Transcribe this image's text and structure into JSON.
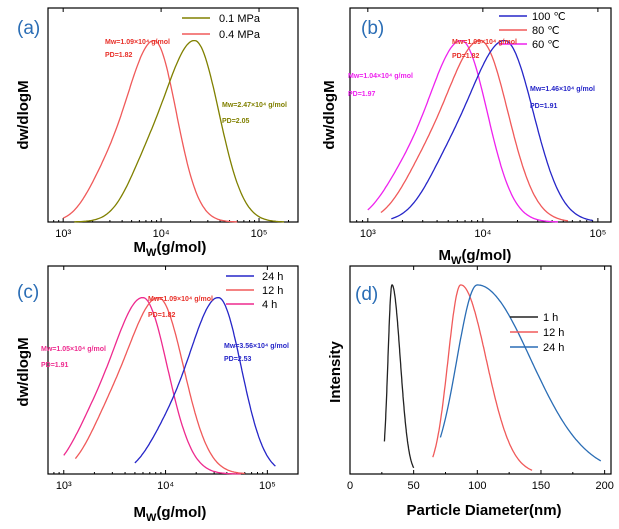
{
  "chart_data": [
    {
      "id": "a",
      "type": "line",
      "panel_label": "(a)",
      "xscale": "log",
      "xlim": [
        700,
        250000
      ],
      "ylim": [
        0,
        1.18
      ],
      "xlabel": "MW(g/mol)",
      "xlabel_main": "M",
      "xlabel_sub": "W",
      "xlabel_rest": "(g/mol)",
      "ylabel": "dw/dlogM",
      "x_tick_labels": [
        "10³",
        "10⁴",
        "10⁵"
      ],
      "x_tick_values": [
        1000,
        10000,
        100000
      ],
      "legend": [
        {
          "label": "0.1 MPa",
          "color": "#808000"
        },
        {
          "label": "0.4 MPa",
          "color": "#f05a5a"
        }
      ],
      "series": [
        {
          "name": "0.4 MPa",
          "color": "#f05a5a",
          "peak": 8500,
          "sigma": 0.3,
          "xmin": 1000,
          "xmax": 60000,
          "skew": 1.0
        },
        {
          "name": "0.1 MPa",
          "color": "#808000",
          "peak": 22000,
          "sigma": 0.33,
          "xmin": 1300,
          "xmax": 180000,
          "skew": 1.4
        }
      ],
      "annotations": [
        {
          "line1": "Mw=1.09×10⁴ g/mol",
          "line2": "PD=1.82",
          "color": "#e8312a"
        },
        {
          "line1": "Mw=2.47×10⁴ g/mol",
          "line2": "PD=2.05",
          "color": "#808000"
        }
      ]
    },
    {
      "id": "b",
      "type": "line",
      "panel_label": "(b)",
      "xscale": "log",
      "xlim": [
        700,
        130000
      ],
      "ylim": [
        0,
        1.18
      ],
      "xlabel": "MW(g/mol)",
      "xlabel_main": "M",
      "xlabel_sub": "W",
      "xlabel_rest": "(g/mol)",
      "ylabel": "dw/dlogM",
      "x_tick_labels": [
        "10³",
        "10⁴",
        "10⁵"
      ],
      "x_tick_values": [
        1000,
        10000,
        100000
      ],
      "legend": [
        {
          "label": "100 ℃",
          "color": "#2626c8"
        },
        {
          "label": "80 ℃",
          "color": "#f05a5a"
        },
        {
          "label": "60 ℃",
          "color": "#ee22ee"
        }
      ],
      "series": [
        {
          "name": "60 ℃",
          "color": "#ee22ee",
          "peak": 6500,
          "sigma": 0.3,
          "xmin": 1000,
          "xmax": 45000,
          "skew": 1.1
        },
        {
          "name": "80 ℃",
          "color": "#f05a5a",
          "peak": 9500,
          "sigma": 0.32,
          "xmin": 1300,
          "xmax": 55000,
          "skew": 1.1
        },
        {
          "name": "100 ℃",
          "color": "#2626c8",
          "peak": 15500,
          "sigma": 0.33,
          "xmin": 1600,
          "xmax": 90000,
          "skew": 1.1
        }
      ],
      "annotations": [
        {
          "line1": "Mw=1.09×10⁴ g/mol",
          "line2": "PD=1.82",
          "color": "#e8312a"
        },
        {
          "line1": "Mw=1.04×10⁴ g/mol",
          "line2": "PD=1.97",
          "color": "#ee22ee"
        },
        {
          "line1": "Mw=1.46×10⁴ g/mol",
          "line2": "PD=1.91",
          "color": "#2626c8"
        }
      ]
    },
    {
      "id": "c",
      "type": "line",
      "panel_label": "(c)",
      "xscale": "log",
      "xlim": [
        700,
        200000
      ],
      "ylim": [
        0,
        1.18
      ],
      "xlabel": "MW(g/mol)",
      "xlabel_main": "M",
      "xlabel_sub": "W",
      "xlabel_rest": "(g/mol)",
      "ylabel": "dw/dlogM",
      "x_tick_labels": [
        "10³",
        "10⁴",
        "10⁵"
      ],
      "x_tick_values": [
        1000,
        10000,
        100000
      ],
      "legend": [
        {
          "label": "24 h",
          "color": "#2626c8"
        },
        {
          "label": "12 h",
          "color": "#f05a5a"
        },
        {
          "label": "4 h",
          "color": "#ee2a8e"
        }
      ],
      "series": [
        {
          "name": "4 h",
          "color": "#ee2a8e",
          "peak": 6000,
          "sigma": 0.32,
          "xmin": 1000,
          "xmax": 55000,
          "skew": 1.1
        },
        {
          "name": "12 h",
          "color": "#f05a5a",
          "peak": 8500,
          "sigma": 0.33,
          "xmin": 1300,
          "xmax": 60000,
          "skew": 1.1
        },
        {
          "name": "24 h",
          "color": "#2626c8",
          "peak": 33000,
          "sigma": 0.3,
          "xmin": 5000,
          "xmax": 120000,
          "skew": 0.9
        }
      ],
      "annotations": [
        {
          "line1": "Mw=1.09×10⁴ g/mol",
          "line2": "PD=1.82",
          "color": "#e8312a"
        },
        {
          "line1": "Mw=1.05×10⁴ g/mol",
          "line2": "PD=1.91",
          "color": "#ee2a8e"
        },
        {
          "line1": "Mw=3.56×10⁴ g/mol",
          "line2": "PD=2.53",
          "color": "#2626c8"
        }
      ]
    },
    {
      "id": "d",
      "type": "line",
      "panel_label": "(d)",
      "xscale": "linear",
      "xlim": [
        0,
        205
      ],
      "ylim": [
        0,
        1.1
      ],
      "xlabel": "Particle Diameter(nm)",
      "ylabel": "Intensity",
      "x_tick_labels": [
        "0",
        "50",
        "100",
        "150",
        "200"
      ],
      "x_tick_values": [
        0,
        50,
        100,
        150,
        200
      ],
      "legend": [
        {
          "label": "1 h",
          "color": "#222222"
        },
        {
          "label": "12 h",
          "color": "#f05a5a"
        },
        {
          "label": "24 h",
          "color": "#2a6db5"
        }
      ],
      "series": [
        {
          "name": "1 h",
          "color": "#222222",
          "peak": 33,
          "wl": 3.2,
          "wr": 6.5,
          "xmin": 27,
          "xmax": 50
        },
        {
          "name": "12 h",
          "color": "#f05a5a",
          "peak": 87,
          "wl": 10,
          "wr": 20,
          "xmin": 65,
          "xmax": 143
        },
        {
          "name": "24 h",
          "color": "#2a6db5",
          "peak": 100,
          "wl": 16,
          "wr": 42,
          "xmin": 71,
          "xmax": 197
        }
      ]
    }
  ]
}
